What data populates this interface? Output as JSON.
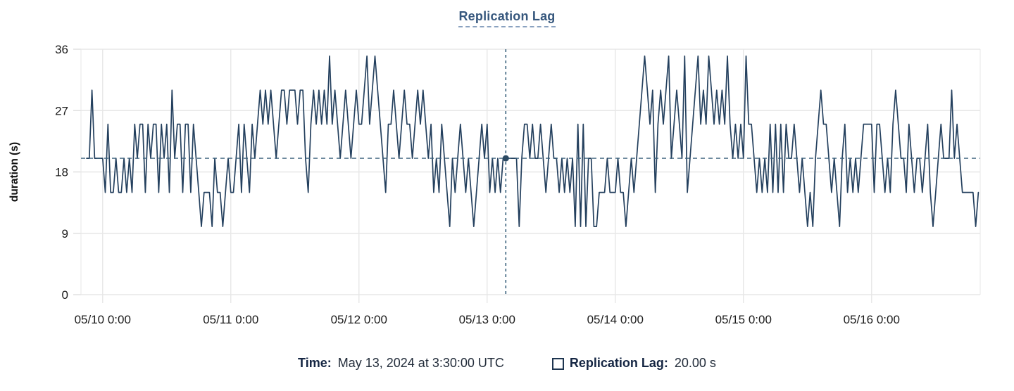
{
  "title": "Replication Lag",
  "footer": {
    "time_label": "Time:",
    "time_value": "May 13, 2024 at 3:30:00 UTC",
    "series_label": "Replication Lag:",
    "series_value": "20.00 s",
    "swatch_icon": "open-square"
  },
  "colors": {
    "line": "#24405e",
    "grid": "#e7e7e7",
    "axis_text": "#1c1c1c",
    "ref_dash": "#3a617c",
    "dot": "#2c4a63",
    "title": "#36577d"
  },
  "chart_data": {
    "type": "line",
    "title": "Replication Lag",
    "xlabel": "",
    "ylabel": "duration (s)",
    "ylim": [
      0,
      36
    ],
    "yticks": [
      0,
      9,
      18,
      27,
      36
    ],
    "grid": true,
    "legend_position": "bottom",
    "x_start": "2024-05-09 21:00 UTC",
    "interval_minutes": 30,
    "xtick_labels": [
      "05/10 0:00",
      "05/11 0:00",
      "05/12 0:00",
      "05/13 0:00",
      "05/14 0:00",
      "05/15 0:00",
      "05/16 0:00"
    ],
    "xtick_hours": [
      3,
      27,
      51,
      75,
      99,
      123,
      147
    ],
    "ref_line_y": 20,
    "crosshair": {
      "label": "May 13, 2024 at 3:30:00 UTC",
      "hours_from_start": 78.5,
      "value": 20.0
    },
    "values": [
      20,
      20,
      30,
      20,
      20,
      20,
      20,
      15,
      25,
      15,
      15,
      20,
      15,
      15,
      20,
      15,
      20,
      15,
      25,
      20,
      25,
      25,
      15,
      25,
      20,
      25,
      25,
      15,
      25,
      20,
      25,
      15,
      30,
      20,
      25,
      25,
      15,
      25,
      25,
      15,
      25,
      20,
      15,
      10,
      15,
      15,
      15,
      10,
      20,
      15,
      15,
      10,
      15,
      20,
      15,
      15,
      20,
      25,
      15,
      25,
      20,
      15,
      25,
      20,
      25,
      30,
      25,
      30,
      25,
      30,
      25,
      20,
      25,
      30,
      30,
      25,
      30,
      30,
      30,
      25,
      30,
      30,
      20,
      15,
      25,
      30,
      25,
      30,
      25,
      30,
      25,
      35,
      25,
      30,
      25,
      20,
      25,
      30,
      25,
      20,
      25,
      30,
      25,
      25,
      30,
      35,
      25,
      30,
      35,
      30,
      25,
      20,
      15,
      25,
      25,
      30,
      25,
      20,
      25,
      30,
      25,
      25,
      20,
      25,
      30,
      25,
      30,
      25,
      20,
      25,
      15,
      20,
      15,
      25,
      20,
      15,
      10,
      20,
      15,
      20,
      25,
      20,
      15,
      20,
      15,
      10,
      15,
      20,
      25,
      20,
      25,
      15,
      20,
      15,
      20,
      15,
      20,
      20,
      20,
      20,
      20,
      20,
      10,
      20,
      25,
      25,
      20,
      25,
      20,
      20,
      25,
      20,
      15,
      20,
      25,
      20,
      20,
      15,
      20,
      15,
      20,
      15,
      20,
      10,
      25,
      10,
      25,
      10,
      20,
      20,
      10,
      10,
      15,
      15,
      15,
      20,
      15,
      15,
      15,
      20,
      15,
      15,
      10,
      15,
      20,
      15,
      20,
      25,
      30,
      35,
      30,
      25,
      30,
      15,
      25,
      30,
      25,
      30,
      35,
      20,
      25,
      30,
      25,
      20,
      35,
      15,
      20,
      25,
      30,
      35,
      25,
      30,
      25,
      35,
      30,
      25,
      30,
      25,
      30,
      25,
      35,
      25,
      20,
      25,
      20,
      25,
      20,
      35,
      25,
      25,
      20,
      15,
      20,
      15,
      20,
      15,
      25,
      15,
      25,
      15,
      25,
      15,
      25,
      20,
      20,
      25,
      20,
      15,
      20,
      15,
      10,
      15,
      10,
      20,
      25,
      30,
      25,
      25,
      20,
      15,
      20,
      15,
      10,
      20,
      25,
      15,
      20,
      15,
      20,
      15,
      20,
      25,
      25,
      25,
      25,
      15,
      25,
      25,
      20,
      15,
      20,
      15,
      25,
      30,
      25,
      20,
      20,
      15,
      25,
      20,
      15,
      20,
      20,
      15,
      20,
      25,
      15,
      10,
      15,
      20,
      25,
      20,
      20,
      20,
      30,
      20,
      25,
      20,
      15,
      15,
      15,
      15,
      15,
      10,
      15
    ]
  }
}
